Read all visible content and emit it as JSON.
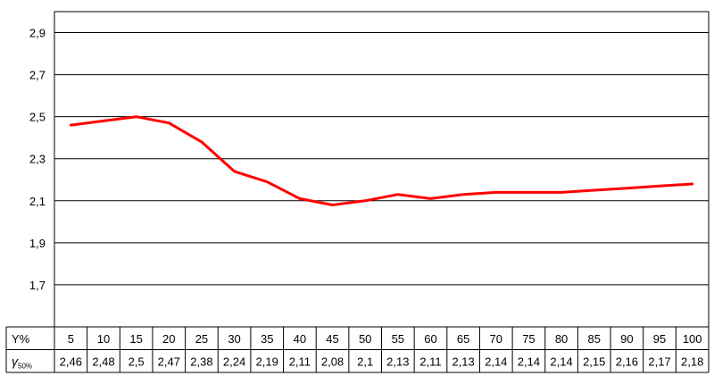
{
  "chart_data": {
    "type": "line",
    "y_ticks": [
      "2,9",
      "2,7",
      "2,5",
      "2,3",
      "2,1",
      "1,9",
      "1,7"
    ],
    "y_tick_values": [
      2.9,
      2.7,
      2.5,
      2.3,
      2.1,
      1.9,
      1.7
    ],
    "ylim": [
      1.5,
      3.0
    ],
    "grid": true,
    "line_color": "#ff0000",
    "table": {
      "row1_header": "Y%",
      "row2_header_main": "γ",
      "row2_header_sub": "50%",
      "x": [
        5,
        10,
        15,
        20,
        25,
        30,
        35,
        40,
        45,
        50,
        55,
        60,
        65,
        70,
        75,
        80,
        85,
        90,
        95,
        100
      ],
      "x_labels": [
        "5",
        "10",
        "15",
        "20",
        "25",
        "30",
        "35",
        "40",
        "45",
        "50",
        "55",
        "60",
        "65",
        "70",
        "75",
        "80",
        "85",
        "90",
        "95",
        "100"
      ],
      "y": [
        2.46,
        2.48,
        2.5,
        2.47,
        2.38,
        2.24,
        2.19,
        2.11,
        2.08,
        2.1,
        2.13,
        2.11,
        2.13,
        2.14,
        2.14,
        2.14,
        2.15,
        2.16,
        2.17,
        2.18
      ],
      "y_labels": [
        "2,46",
        "2,48",
        "2,5",
        "2,47",
        "2,38",
        "2,24",
        "2,19",
        "2,11",
        "2,08",
        "2,1",
        "2,13",
        "2,11",
        "2,13",
        "2,14",
        "2,14",
        "2,14",
        "2,15",
        "2,16",
        "2,17",
        "2,18"
      ]
    }
  }
}
